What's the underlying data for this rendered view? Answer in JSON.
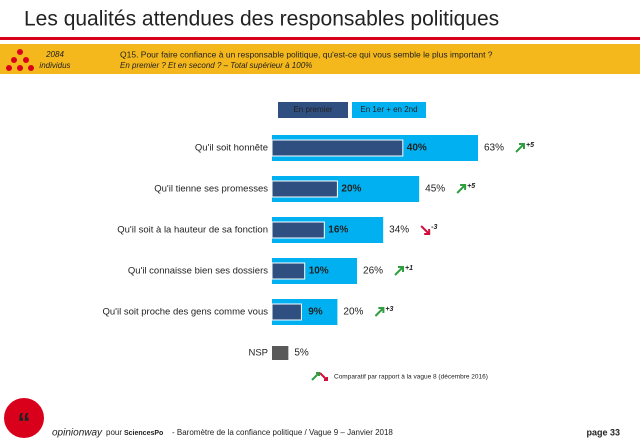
{
  "header": {
    "title": "Les qualités attendues des responsables politiques",
    "sample_size": "2084",
    "sample_label": "individus",
    "question": "Q15. Pour faire confiance à un responsable politique, qu'est-ce qui vous semble le plus important ?",
    "subquestion": "En premier ? Et en second ? – Total supérieur à 100%"
  },
  "chart_data": {
    "type": "bar",
    "categories": [
      "Qu'il soit honnête",
      "Qu'il tienne ses promesses",
      "Qu'il soit à la hauteur de sa fonction",
      "Qu'il connaisse bien ses dossiers",
      "Qu'il soit proche des gens comme vous",
      "NSP"
    ],
    "series": [
      {
        "name": "En premier",
        "color": "#2f4f80",
        "values": [
          40,
          20,
          16,
          10,
          9,
          null
        ],
        "value_labels": [
          "40%",
          "20%",
          "16%",
          "10%",
          "9%",
          null
        ]
      },
      {
        "name": "En 1er + en 2nd",
        "color": "#00b0f0",
        "colors": [
          "#00b0f0",
          "#00b0f0",
          "#00b0f0",
          "#00b0f0",
          "#00b0f0",
          "#595959"
        ],
        "values": [
          63,
          45,
          34,
          26,
          20,
          5
        ],
        "value_labels": [
          "63%",
          "45%",
          "34%",
          "26%",
          "20%",
          "5%"
        ]
      }
    ],
    "changes": {
      "values": [
        5,
        5,
        -3,
        1,
        3,
        null
      ],
      "value_labels": [
        "+5",
        "+5",
        "-3",
        "+1",
        "+3",
        null
      ],
      "up_color": "#2e9e3e",
      "down_color": "#d0103a"
    },
    "note": "Comparatif par rapport à la vague 8 (décembre 2016)"
  },
  "footer": {
    "brand": "opinionway",
    "pour": "pour",
    "partner": "SciencesPo",
    "source": "-  Baromètre de la confiance politique / Vague 9 – Janvier 2018",
    "page": "page 33"
  }
}
